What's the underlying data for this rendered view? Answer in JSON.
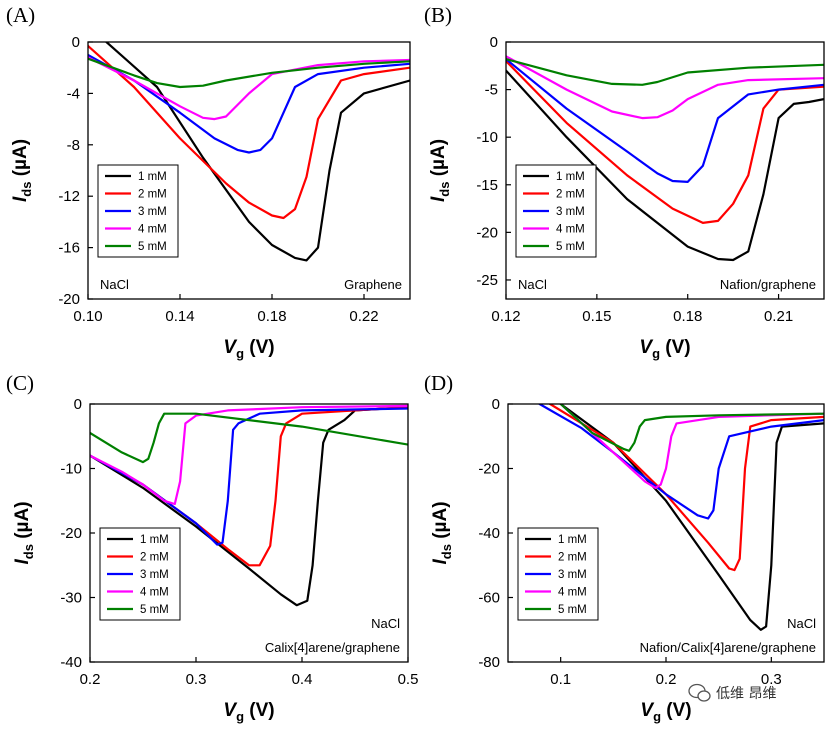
{
  "chart_data": [
    {
      "panel": "(A)",
      "type": "line",
      "xlim": [
        0.1,
        0.24
      ],
      "ylim": [
        -20,
        0
      ],
      "xticks": [
        0.1,
        0.14,
        0.18,
        0.22
      ],
      "yticks": [
        0,
        -4,
        -8,
        -12,
        -16,
        -20
      ],
      "tick_format": {
        "x": 2,
        "y": 0
      },
      "xlabel": {
        "main": "V",
        "sub": "g",
        "unit": "(V)"
      },
      "ylabel": {
        "main": "I",
        "sub": "ds",
        "unit": "(µA)"
      },
      "legend_position": "lower-left",
      "annotations": [
        {
          "text": "NaCl",
          "position": "bottom-left"
        },
        {
          "text": "Graphene",
          "position": "bottom-right"
        }
      ],
      "series": [
        {
          "name": "1 mM",
          "color": "#000000",
          "x": [
            0.108,
            0.13,
            0.15,
            0.17,
            0.18,
            0.19,
            0.195,
            0.2,
            0.205,
            0.21,
            0.22,
            0.24
          ],
          "y": [
            0,
            -3.5,
            -9,
            -14,
            -15.8,
            -16.8,
            -17,
            -16,
            -10,
            -5.5,
            -4,
            -3
          ]
        },
        {
          "name": "2 mM",
          "color": "#ff0000",
          "x": [
            0.1,
            0.12,
            0.14,
            0.16,
            0.17,
            0.18,
            0.185,
            0.19,
            0.195,
            0.2,
            0.21,
            0.22,
            0.24
          ],
          "y": [
            -0.3,
            -3.5,
            -7.5,
            -11,
            -12.5,
            -13.5,
            -13.7,
            -13,
            -10.5,
            -6,
            -3,
            -2.5,
            -2
          ]
        },
        {
          "name": "3 mM",
          "color": "#0000ff",
          "x": [
            0.1,
            0.12,
            0.14,
            0.155,
            0.165,
            0.17,
            0.175,
            0.18,
            0.185,
            0.19,
            0.2,
            0.22,
            0.24
          ],
          "y": [
            -1,
            -3,
            -5.5,
            -7.5,
            -8.4,
            -8.6,
            -8.4,
            -7.5,
            -5.5,
            -3.5,
            -2.5,
            -2,
            -1.7
          ]
        },
        {
          "name": "4 mM",
          "color": "#ff00ff",
          "x": [
            0.1,
            0.12,
            0.14,
            0.15,
            0.155,
            0.16,
            0.17,
            0.18,
            0.2,
            0.22,
            0.24
          ],
          "y": [
            -1.2,
            -3,
            -5,
            -5.9,
            -6,
            -5.8,
            -4,
            -2.5,
            -1.8,
            -1.5,
            -1.4
          ]
        },
        {
          "name": "5 mM",
          "color": "#008000",
          "x": [
            0.1,
            0.12,
            0.13,
            0.14,
            0.15,
            0.16,
            0.18,
            0.2,
            0.22,
            0.24
          ],
          "y": [
            -1.3,
            -2.6,
            -3.2,
            -3.5,
            -3.4,
            -3,
            -2.4,
            -2,
            -1.7,
            -1.5
          ]
        }
      ]
    },
    {
      "panel": "(B)",
      "type": "line",
      "xlim": [
        0.12,
        0.225
      ],
      "ylim": [
        -27,
        0
      ],
      "xticks": [
        0.12,
        0.15,
        0.18,
        0.21
      ],
      "yticks": [
        0,
        -5,
        -10,
        -15,
        -20,
        -25
      ],
      "tick_format": {
        "x": 2,
        "y": 0
      },
      "xlabel": {
        "main": "V",
        "sub": "g",
        "unit": "(V)"
      },
      "ylabel": {
        "main": "I",
        "sub": "ds",
        "unit": "(µA)"
      },
      "legend_position": "lower-left",
      "annotations": [
        {
          "text": "NaCl",
          "position": "bottom-left"
        },
        {
          "text": "Nafion/graphene",
          "position": "bottom-right"
        }
      ],
      "series": [
        {
          "name": "1 mM",
          "color": "#000000",
          "x": [
            0.12,
            0.14,
            0.16,
            0.18,
            0.19,
            0.195,
            0.2,
            0.205,
            0.21,
            0.215,
            0.22,
            0.225
          ],
          "y": [
            -3,
            -10,
            -16.5,
            -21.5,
            -22.8,
            -22.9,
            -22,
            -16,
            -8,
            -6.5,
            -6.3,
            -6
          ]
        },
        {
          "name": "2 mM",
          "color": "#ff0000",
          "x": [
            0.12,
            0.14,
            0.16,
            0.175,
            0.185,
            0.19,
            0.195,
            0.2,
            0.205,
            0.21,
            0.225
          ],
          "y": [
            -2,
            -8.5,
            -14,
            -17.5,
            -19,
            -18.8,
            -17,
            -14,
            -7,
            -5,
            -4.7
          ]
        },
        {
          "name": "3 mM",
          "color": "#0000ff",
          "x": [
            0.12,
            0.14,
            0.16,
            0.17,
            0.175,
            0.18,
            0.185,
            0.19,
            0.2,
            0.21,
            0.225
          ],
          "y": [
            -1.8,
            -7,
            -11.5,
            -13.8,
            -14.6,
            -14.7,
            -13,
            -8,
            -5.5,
            -5,
            -4.5
          ]
        },
        {
          "name": "4 mM",
          "color": "#ff00ff",
          "x": [
            0.12,
            0.14,
            0.155,
            0.165,
            0.17,
            0.175,
            0.18,
            0.19,
            0.2,
            0.225
          ],
          "y": [
            -1.5,
            -5,
            -7.3,
            -8,
            -7.9,
            -7.2,
            -6,
            -4.5,
            -4,
            -3.8
          ]
        },
        {
          "name": "5 mM",
          "color": "#008000",
          "x": [
            0.12,
            0.14,
            0.155,
            0.165,
            0.17,
            0.18,
            0.2,
            0.225
          ],
          "y": [
            -1.8,
            -3.5,
            -4.4,
            -4.5,
            -4.2,
            -3.2,
            -2.7,
            -2.4
          ]
        }
      ]
    },
    {
      "panel": "(C)",
      "type": "line",
      "xlim": [
        0.2,
        0.5
      ],
      "ylim": [
        -40,
        0
      ],
      "xticks": [
        0.2,
        0.3,
        0.4,
        0.5
      ],
      "yticks": [
        0,
        -10,
        -20,
        -30,
        -40
      ],
      "tick_format": {
        "x": 1,
        "y": 0
      },
      "xlabel": {
        "main": "V",
        "sub": "g",
        "unit": "(V)"
      },
      "ylabel": {
        "main": "I",
        "sub": "ds",
        "unit": "(µA)"
      },
      "legend_position": "lower-left",
      "annotations": [
        {
          "text": "NaCl",
          "position": "bottom-right-upper"
        },
        {
          "text": "Calix[4]arene/graphene",
          "position": "bottom-right"
        }
      ],
      "series": [
        {
          "name": "1 mM",
          "color": "#000000",
          "x": [
            0.2,
            0.25,
            0.3,
            0.35,
            0.38,
            0.395,
            0.405,
            0.41,
            0.415,
            0.42,
            0.425,
            0.44,
            0.45,
            0.5
          ],
          "y": [
            -8,
            -13,
            -19,
            -25.5,
            -29.5,
            -31.2,
            -30.5,
            -25,
            -15,
            -6,
            -4,
            -2.5,
            -1,
            -0.5
          ]
        },
        {
          "name": "2 mM",
          "color": "#ff0000",
          "x": [
            0.2,
            0.25,
            0.3,
            0.33,
            0.35,
            0.36,
            0.37,
            0.375,
            0.38,
            0.385,
            0.4,
            0.45,
            0.5
          ],
          "y": [
            -8,
            -12.5,
            -18.5,
            -22.5,
            -25,
            -25,
            -22,
            -15,
            -5,
            -3,
            -1.5,
            -1,
            -0.5
          ]
        },
        {
          "name": "3 mM",
          "color": "#0000ff",
          "x": [
            0.2,
            0.25,
            0.3,
            0.32,
            0.325,
            0.33,
            0.335,
            0.34,
            0.36,
            0.4,
            0.5
          ],
          "y": [
            -8,
            -12.5,
            -18.5,
            -21.8,
            -21.5,
            -15,
            -4,
            -3,
            -1.5,
            -1,
            -0.7
          ]
        },
        {
          "name": "4 mM",
          "color": "#ff00ff",
          "x": [
            0.2,
            0.23,
            0.25,
            0.27,
            0.28,
            0.285,
            0.29,
            0.3,
            0.33,
            0.4,
            0.5
          ],
          "y": [
            -8,
            -10.5,
            -12.5,
            -15,
            -15.5,
            -12,
            -3,
            -1.8,
            -1,
            -0.5,
            -0.3
          ]
        },
        {
          "name": "5 mM",
          "color": "#008000",
          "x": [
            0.2,
            0.23,
            0.25,
            0.255,
            0.26,
            0.265,
            0.27,
            0.3,
            0.4,
            0.5
          ],
          "y": [
            -4.5,
            -7.5,
            -9,
            -8.5,
            -6,
            -3,
            -1.5,
            -1.5,
            -3.5,
            -6.3
          ]
        }
      ]
    },
    {
      "panel": "(D)",
      "type": "line",
      "xlim": [
        0.05,
        0.35
      ],
      "ylim": [
        -80,
        0
      ],
      "xticks": [
        0.1,
        0.2,
        0.3
      ],
      "yticks": [
        0,
        -20,
        -40,
        -60,
        -80
      ],
      "tick_format": {
        "x": 1,
        "y": 0
      },
      "xlabel": {
        "main": "V",
        "sub": "g",
        "unit": "(V)"
      },
      "ylabel": {
        "main": "I",
        "sub": "ds",
        "unit": "(µA)"
      },
      "legend_position": "lower-left",
      "annotations": [
        {
          "text": "NaCl",
          "position": "bottom-right-upper"
        },
        {
          "text": "Nafion/Calix[4]arene/graphene",
          "position": "bottom-right"
        }
      ],
      "series": [
        {
          "name": "1 mM",
          "color": "#000000",
          "x": [
            0.1,
            0.15,
            0.2,
            0.25,
            0.28,
            0.29,
            0.295,
            0.3,
            0.305,
            0.31,
            0.35
          ],
          "y": [
            0,
            -12,
            -30,
            -53,
            -67,
            -70,
            -69,
            -50,
            -12,
            -7,
            -6
          ]
        },
        {
          "name": "2 mM",
          "color": "#ff0000",
          "x": [
            0.09,
            0.15,
            0.2,
            0.24,
            0.26,
            0.265,
            0.27,
            0.275,
            0.28,
            0.3,
            0.35
          ],
          "y": [
            0,
            -12,
            -28,
            -43,
            -51,
            -51.5,
            -48,
            -20,
            -7,
            -5,
            -4
          ]
        },
        {
          "name": "3 mM",
          "color": "#0000ff",
          "x": [
            0.08,
            0.12,
            0.15,
            0.2,
            0.23,
            0.24,
            0.245,
            0.25,
            0.26,
            0.3,
            0.35
          ],
          "y": [
            0,
            -7.5,
            -15,
            -28,
            -34.5,
            -35.5,
            -33,
            -20,
            -10,
            -7,
            -5
          ]
        },
        {
          "name": "4 mM",
          "color": "#ff00ff",
          "x": [
            0.1,
            0.15,
            0.18,
            0.19,
            0.195,
            0.2,
            0.205,
            0.21,
            0.25,
            0.35
          ],
          "y": [
            0,
            -15,
            -24,
            -26,
            -25,
            -20,
            -10,
            -6,
            -4,
            -3
          ]
        },
        {
          "name": "5 mM",
          "color": "#008000",
          "x": [
            0.1,
            0.13,
            0.16,
            0.165,
            0.17,
            0.175,
            0.18,
            0.2,
            0.25,
            0.35
          ],
          "y": [
            0,
            -9,
            -14,
            -14.5,
            -12,
            -7,
            -5,
            -4,
            -3.5,
            -3
          ]
        }
      ]
    }
  ],
  "watermark": "低维 昂维"
}
